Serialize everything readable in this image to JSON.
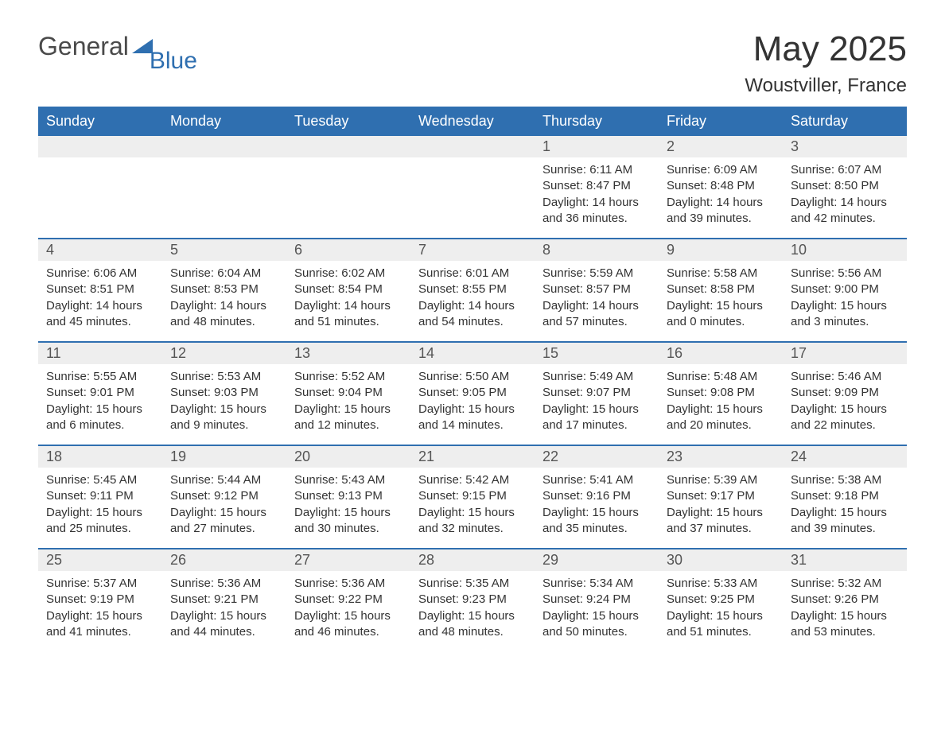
{
  "logo": {
    "text1": "General",
    "text2": "Blue"
  },
  "title": "May 2025",
  "location": "Woustviller, France",
  "colors": {
    "header_bg": "#2f6fb0",
    "header_text": "#ffffff",
    "daynum_bg": "#eeeeee",
    "border": "#2f6fb0",
    "body_text": "#333333",
    "logo_gray": "#4a4a4a",
    "logo_blue": "#2f6fb0",
    "page_bg": "#ffffff"
  },
  "fonts": {
    "title_size_pt": 33,
    "location_size_pt": 18,
    "weekday_size_pt": 14,
    "daynum_size_pt": 14,
    "body_size_pt": 11
  },
  "weekdays": [
    "Sunday",
    "Monday",
    "Tuesday",
    "Wednesday",
    "Thursday",
    "Friday",
    "Saturday"
  ],
  "weeks": [
    [
      {
        "n": "",
        "sunrise": "",
        "sunset": "",
        "daylight": ""
      },
      {
        "n": "",
        "sunrise": "",
        "sunset": "",
        "daylight": ""
      },
      {
        "n": "",
        "sunrise": "",
        "sunset": "",
        "daylight": ""
      },
      {
        "n": "",
        "sunrise": "",
        "sunset": "",
        "daylight": ""
      },
      {
        "n": "1",
        "sunrise": "Sunrise: 6:11 AM",
        "sunset": "Sunset: 8:47 PM",
        "daylight": "Daylight: 14 hours and 36 minutes."
      },
      {
        "n": "2",
        "sunrise": "Sunrise: 6:09 AM",
        "sunset": "Sunset: 8:48 PM",
        "daylight": "Daylight: 14 hours and 39 minutes."
      },
      {
        "n": "3",
        "sunrise": "Sunrise: 6:07 AM",
        "sunset": "Sunset: 8:50 PM",
        "daylight": "Daylight: 14 hours and 42 minutes."
      }
    ],
    [
      {
        "n": "4",
        "sunrise": "Sunrise: 6:06 AM",
        "sunset": "Sunset: 8:51 PM",
        "daylight": "Daylight: 14 hours and 45 minutes."
      },
      {
        "n": "5",
        "sunrise": "Sunrise: 6:04 AM",
        "sunset": "Sunset: 8:53 PM",
        "daylight": "Daylight: 14 hours and 48 minutes."
      },
      {
        "n": "6",
        "sunrise": "Sunrise: 6:02 AM",
        "sunset": "Sunset: 8:54 PM",
        "daylight": "Daylight: 14 hours and 51 minutes."
      },
      {
        "n": "7",
        "sunrise": "Sunrise: 6:01 AM",
        "sunset": "Sunset: 8:55 PM",
        "daylight": "Daylight: 14 hours and 54 minutes."
      },
      {
        "n": "8",
        "sunrise": "Sunrise: 5:59 AM",
        "sunset": "Sunset: 8:57 PM",
        "daylight": "Daylight: 14 hours and 57 minutes."
      },
      {
        "n": "9",
        "sunrise": "Sunrise: 5:58 AM",
        "sunset": "Sunset: 8:58 PM",
        "daylight": "Daylight: 15 hours and 0 minutes."
      },
      {
        "n": "10",
        "sunrise": "Sunrise: 5:56 AM",
        "sunset": "Sunset: 9:00 PM",
        "daylight": "Daylight: 15 hours and 3 minutes."
      }
    ],
    [
      {
        "n": "11",
        "sunrise": "Sunrise: 5:55 AM",
        "sunset": "Sunset: 9:01 PM",
        "daylight": "Daylight: 15 hours and 6 minutes."
      },
      {
        "n": "12",
        "sunrise": "Sunrise: 5:53 AM",
        "sunset": "Sunset: 9:03 PM",
        "daylight": "Daylight: 15 hours and 9 minutes."
      },
      {
        "n": "13",
        "sunrise": "Sunrise: 5:52 AM",
        "sunset": "Sunset: 9:04 PM",
        "daylight": "Daylight: 15 hours and 12 minutes."
      },
      {
        "n": "14",
        "sunrise": "Sunrise: 5:50 AM",
        "sunset": "Sunset: 9:05 PM",
        "daylight": "Daylight: 15 hours and 14 minutes."
      },
      {
        "n": "15",
        "sunrise": "Sunrise: 5:49 AM",
        "sunset": "Sunset: 9:07 PM",
        "daylight": "Daylight: 15 hours and 17 minutes."
      },
      {
        "n": "16",
        "sunrise": "Sunrise: 5:48 AM",
        "sunset": "Sunset: 9:08 PM",
        "daylight": "Daylight: 15 hours and 20 minutes."
      },
      {
        "n": "17",
        "sunrise": "Sunrise: 5:46 AM",
        "sunset": "Sunset: 9:09 PM",
        "daylight": "Daylight: 15 hours and 22 minutes."
      }
    ],
    [
      {
        "n": "18",
        "sunrise": "Sunrise: 5:45 AM",
        "sunset": "Sunset: 9:11 PM",
        "daylight": "Daylight: 15 hours and 25 minutes."
      },
      {
        "n": "19",
        "sunrise": "Sunrise: 5:44 AM",
        "sunset": "Sunset: 9:12 PM",
        "daylight": "Daylight: 15 hours and 27 minutes."
      },
      {
        "n": "20",
        "sunrise": "Sunrise: 5:43 AM",
        "sunset": "Sunset: 9:13 PM",
        "daylight": "Daylight: 15 hours and 30 minutes."
      },
      {
        "n": "21",
        "sunrise": "Sunrise: 5:42 AM",
        "sunset": "Sunset: 9:15 PM",
        "daylight": "Daylight: 15 hours and 32 minutes."
      },
      {
        "n": "22",
        "sunrise": "Sunrise: 5:41 AM",
        "sunset": "Sunset: 9:16 PM",
        "daylight": "Daylight: 15 hours and 35 minutes."
      },
      {
        "n": "23",
        "sunrise": "Sunrise: 5:39 AM",
        "sunset": "Sunset: 9:17 PM",
        "daylight": "Daylight: 15 hours and 37 minutes."
      },
      {
        "n": "24",
        "sunrise": "Sunrise: 5:38 AM",
        "sunset": "Sunset: 9:18 PM",
        "daylight": "Daylight: 15 hours and 39 minutes."
      }
    ],
    [
      {
        "n": "25",
        "sunrise": "Sunrise: 5:37 AM",
        "sunset": "Sunset: 9:19 PM",
        "daylight": "Daylight: 15 hours and 41 minutes."
      },
      {
        "n": "26",
        "sunrise": "Sunrise: 5:36 AM",
        "sunset": "Sunset: 9:21 PM",
        "daylight": "Daylight: 15 hours and 44 minutes."
      },
      {
        "n": "27",
        "sunrise": "Sunrise: 5:36 AM",
        "sunset": "Sunset: 9:22 PM",
        "daylight": "Daylight: 15 hours and 46 minutes."
      },
      {
        "n": "28",
        "sunrise": "Sunrise: 5:35 AM",
        "sunset": "Sunset: 9:23 PM",
        "daylight": "Daylight: 15 hours and 48 minutes."
      },
      {
        "n": "29",
        "sunrise": "Sunrise: 5:34 AM",
        "sunset": "Sunset: 9:24 PM",
        "daylight": "Daylight: 15 hours and 50 minutes."
      },
      {
        "n": "30",
        "sunrise": "Sunrise: 5:33 AM",
        "sunset": "Sunset: 9:25 PM",
        "daylight": "Daylight: 15 hours and 51 minutes."
      },
      {
        "n": "31",
        "sunrise": "Sunrise: 5:32 AM",
        "sunset": "Sunset: 9:26 PM",
        "daylight": "Daylight: 15 hours and 53 minutes."
      }
    ]
  ]
}
